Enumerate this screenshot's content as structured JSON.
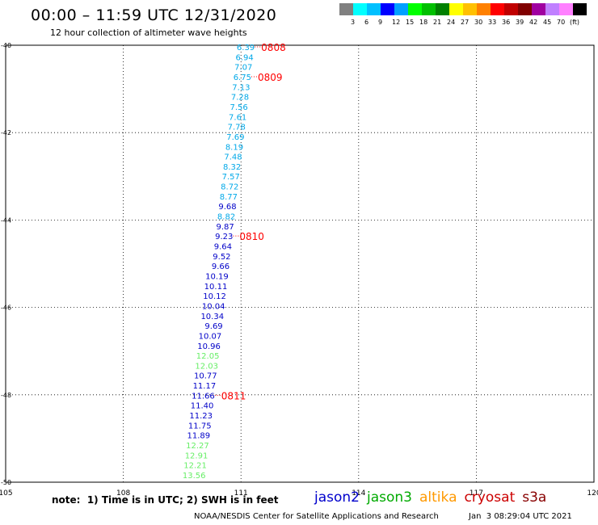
{
  "header": {
    "title": "00:00 – 11:59 UTC 12/31/2020",
    "subtitle": "12 hour collection of altimeter wave heights"
  },
  "legend": {
    "unit_label": "(ft)",
    "bins": [
      {
        "color": "#808080",
        "label": ""
      },
      {
        "color": "#00ffff",
        "label": "3"
      },
      {
        "color": "#00c0ff",
        "label": "6"
      },
      {
        "color": "#0000ff",
        "label": "9"
      },
      {
        "color": "#00a0ff",
        "label": "12"
      },
      {
        "color": "#00ff00",
        "label": "15"
      },
      {
        "color": "#00c000",
        "label": "18"
      },
      {
        "color": "#008000",
        "label": "21"
      },
      {
        "color": "#ffff00",
        "label": "24"
      },
      {
        "color": "#ffc000",
        "label": "27"
      },
      {
        "color": "#ff8000",
        "label": "30"
      },
      {
        "color": "#ff0000",
        "label": "33"
      },
      {
        "color": "#c00000",
        "label": "36"
      },
      {
        "color": "#800000",
        "label": "39"
      },
      {
        "color": "#a000a0",
        "label": "42"
      },
      {
        "color": "#c080ff",
        "label": "45"
      },
      {
        "color": "#ff80ff",
        "label": "70"
      },
      {
        "color": "#000000",
        "label": ""
      }
    ]
  },
  "map": {
    "lon_range": [
      105,
      120
    ],
    "lat_range": [
      -50,
      -40
    ],
    "lon_ticks": [
      "105",
      "108",
      "111",
      "114",
      "117",
      "120"
    ],
    "lat_ticks": [
      "-40",
      "-42",
      "-44",
      "-46",
      "-48",
      "-50"
    ],
    "grid": true,
    "track_lon_start": 111.35,
    "track_lon_end": 110.1,
    "obs_colors": {
      "jason2": "#00a8e8",
      "jason2b": "#0000c8",
      "jason3": "#66ee66"
    },
    "observations": [
      {
        "v": "6.39",
        "c": "jason2"
      },
      {
        "v": "6.94",
        "c": "jason2"
      },
      {
        "v": "7.07",
        "c": "jason2"
      },
      {
        "v": "6.75",
        "c": "jason2"
      },
      {
        "v": "7.13",
        "c": "jason2"
      },
      {
        "v": "7.28",
        "c": "jason2"
      },
      {
        "v": "7.56",
        "c": "jason2"
      },
      {
        "v": "7.61",
        "c": "jason2"
      },
      {
        "v": "7.78",
        "c": "jason2"
      },
      {
        "v": "7.69",
        "c": "jason2"
      },
      {
        "v": "8.19",
        "c": "jason2"
      },
      {
        "v": "7.48",
        "c": "jason2"
      },
      {
        "v": "8.32",
        "c": "jason2"
      },
      {
        "v": "7.57",
        "c": "jason2"
      },
      {
        "v": "8.72",
        "c": "jason2"
      },
      {
        "v": "8.77",
        "c": "jason2"
      },
      {
        "v": "9.68",
        "c": "jason2b"
      },
      {
        "v": "8.82",
        "c": "jason2"
      },
      {
        "v": "9.87",
        "c": "jason2b"
      },
      {
        "v": "9.23",
        "c": "jason2b"
      },
      {
        "v": "9.64",
        "c": "jason2b"
      },
      {
        "v": "9.52",
        "c": "jason2b"
      },
      {
        "v": "9.66",
        "c": "jason2b"
      },
      {
        "v": "10.19",
        "c": "jason2b"
      },
      {
        "v": "10.11",
        "c": "jason2b"
      },
      {
        "v": "10.12",
        "c": "jason2b"
      },
      {
        "v": "10.04",
        "c": "jason2b"
      },
      {
        "v": "10.34",
        "c": "jason2b"
      },
      {
        "v": "9.69",
        "c": "jason2b"
      },
      {
        "v": "10.07",
        "c": "jason2b"
      },
      {
        "v": "10.96",
        "c": "jason2b"
      },
      {
        "v": "12.05",
        "c": "jason3"
      },
      {
        "v": "12.03",
        "c": "jason3"
      },
      {
        "v": "10.77",
        "c": "jason2b"
      },
      {
        "v": "11.17",
        "c": "jason2b"
      },
      {
        "v": "11.66",
        "c": "jason2b"
      },
      {
        "v": "11.40",
        "c": "jason2b"
      },
      {
        "v": "11.23",
        "c": "jason2b"
      },
      {
        "v": "11.75",
        "c": "jason2b"
      },
      {
        "v": "11.89",
        "c": "jason2b"
      },
      {
        "v": "12.27",
        "c": "jason3"
      },
      {
        "v": "12.91",
        "c": "jason3"
      },
      {
        "v": "12.21",
        "c": "jason3"
      },
      {
        "v": "13.56",
        "c": "jason3"
      }
    ],
    "time_labels": [
      {
        "text": "0808",
        "index": 0
      },
      {
        "text": "0809",
        "index": 3
      },
      {
        "text": "0810",
        "index": 19
      },
      {
        "text": "0811",
        "index": 35
      }
    ]
  },
  "footer": {
    "note": "note:  1) Time is in UTC; 2) SWH is in feet",
    "satellites": [
      {
        "name": "jason2",
        "color": "#0000cc"
      },
      {
        "name": "jason3",
        "color": "#00aa00"
      },
      {
        "name": "altika",
        "color": "#ff9900"
      },
      {
        "name": "cryosat",
        "color": "#cc0000"
      },
      {
        "name": "s3a",
        "color": "#880000"
      }
    ],
    "credit": "NOAA/NESDIS Center for Satellite Applications and Research",
    "timestamp": "Jan  3 08:29:04 UTC 2021"
  }
}
